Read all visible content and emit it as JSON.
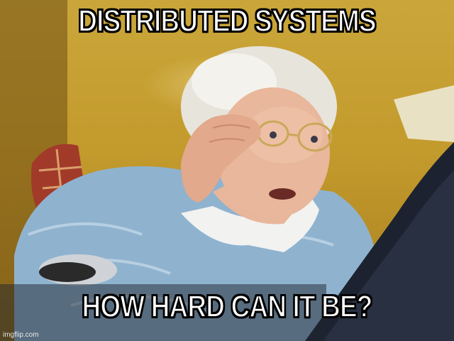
{
  "meme": {
    "top_text": "DISTRIBUTED SYSTEMS",
    "bottom_text": "HOW HARD CAN IT BE?",
    "watermark": "imgflip.com"
  },
  "colors": {
    "wall": "#c39a2c",
    "sweater": "#8fb3cf",
    "laptop": "#1c2230",
    "text": "#ffffff",
    "outline": "#000000"
  }
}
